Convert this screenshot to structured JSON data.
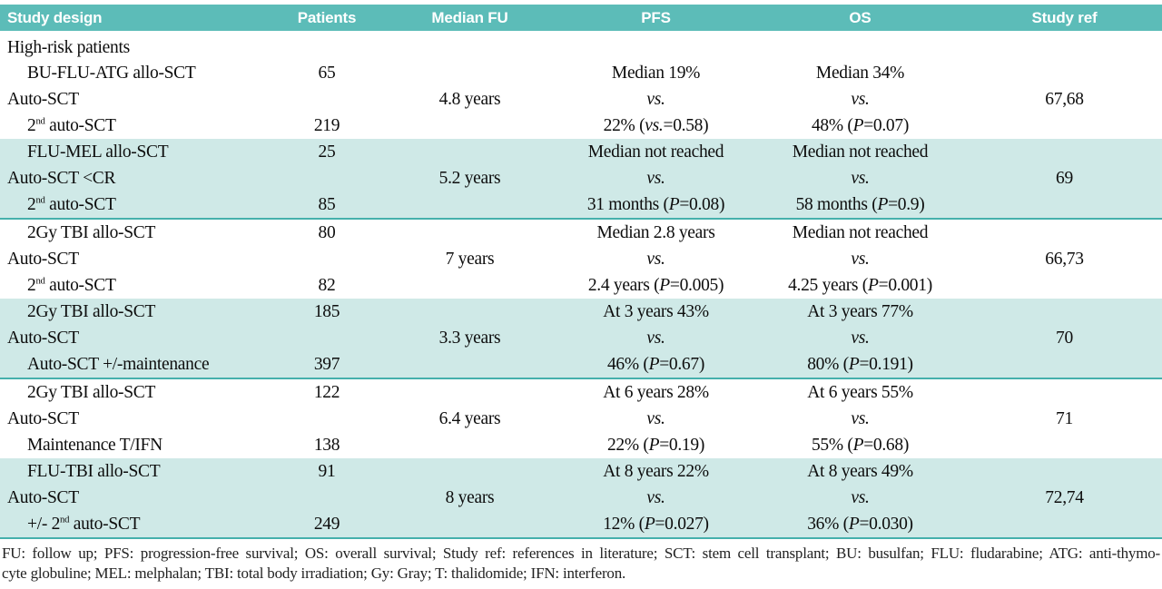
{
  "colors": {
    "header_bg": "#5cbcb8",
    "row_shaded_bg": "#cfe9e7",
    "divider": "#45b0ac",
    "header_text": "#ffffff",
    "body_text": "#0d0d0d"
  },
  "table": {
    "headers": [
      "Study design",
      "Patients",
      "Median FU",
      "PFS",
      "OS",
      "Study ref"
    ],
    "section_label": "High-risk patients",
    "blocks": [
      {
        "shaded": false,
        "rows": [
          {
            "indent": true,
            "study": "BU-FLU-ATG allo-SCT",
            "patients": "65",
            "pfs": "Median 19%",
            "os": "Median 34%"
          },
          {
            "indent": false,
            "study": "Auto-SCT",
            "median_fu": "4.8 years",
            "pfs": "vs.",
            "os": "vs.",
            "ref": "67,68"
          },
          {
            "indent": true,
            "study": "2nd auto-SCT",
            "patients": "219",
            "pfs": "22% (vs.=0.58)",
            "os": "48% (P=0.07)"
          }
        ]
      },
      {
        "shaded": true,
        "rows": [
          {
            "indent": true,
            "study": "FLU-MEL allo-SCT",
            "patients": "25",
            "pfs": "Median not reached",
            "os": "Median not reached"
          },
          {
            "indent": false,
            "study": "Auto-SCT <CR",
            "median_fu": "5.2 years",
            "pfs": "vs.",
            "os": "vs.",
            "ref": "69"
          },
          {
            "indent": true,
            "study": "2nd auto-SCT",
            "patients": "85",
            "pfs": "31 months (P=0.08)",
            "os": "58 months (P=0.9)"
          }
        ]
      },
      {
        "shaded": false,
        "rows": [
          {
            "indent": true,
            "study": "2Gy TBI allo-SCT",
            "patients": "80",
            "pfs": "Median 2.8 years",
            "os": "Median not reached"
          },
          {
            "indent": false,
            "study": "Auto-SCT",
            "median_fu": "7 years",
            "pfs": "vs.",
            "os": "vs.",
            "ref": "66,73"
          },
          {
            "indent": true,
            "study": "2nd auto-SCT",
            "patients": "82",
            "pfs": "2.4 years (P=0.005)",
            "os": "4.25 years (P=0.001)"
          }
        ]
      },
      {
        "shaded": true,
        "rows": [
          {
            "indent": true,
            "study": "2Gy TBI allo-SCT",
            "patients": "185",
            "pfs": "At 3 years 43%",
            "os": "At 3 years 77%"
          },
          {
            "indent": false,
            "study": "Auto-SCT",
            "median_fu": "3.3 years",
            "pfs": "vs.",
            "os": "vs.",
            "ref": "70"
          },
          {
            "indent": true,
            "study": "Auto-SCT +/-maintenance",
            "patients": "397",
            "pfs": "46% (P=0.67)",
            "os": "80% (P=0.191)"
          }
        ]
      },
      {
        "shaded": false,
        "rows": [
          {
            "indent": true,
            "study": "2Gy TBI allo-SCT",
            "patients": "122",
            "pfs": "At 6 years 28%",
            "os": "At 6 years 55%"
          },
          {
            "indent": false,
            "study": "Auto-SCT",
            "median_fu": "6.4 years",
            "pfs": "vs.",
            "os": "vs.",
            "ref": "71"
          },
          {
            "indent": true,
            "study": "Maintenance T/IFN",
            "patients": "138",
            "pfs": "22% (P=0.19)",
            "os": "55% (P=0.68)"
          }
        ]
      },
      {
        "shaded": true,
        "rows": [
          {
            "indent": true,
            "study": "FLU-TBI allo-SCT",
            "patients": "91",
            "pfs": "At 8 years 22%",
            "os": "At 8 years 49%"
          },
          {
            "indent": false,
            "study": "Auto-SCT",
            "median_fu": "8 years",
            "pfs": "vs.",
            "os": "vs.",
            "ref": "72,74"
          },
          {
            "indent": true,
            "study": "+/- 2nd auto-SCT",
            "patients": "249",
            "pfs": "12% (P=0.027)",
            "os": "36% (P=0.030)"
          }
        ]
      }
    ],
    "footnote_lines": [
      "FU: follow up; PFS: progression-free survival; OS: overall survival; Study ref: references in literature; SCT: stem cell transplant; BU: busulfan; FLU: fludarabine; ATG: anti-thymo-",
      "cyte globuline; MEL: melphalan; TBI: total body irradiation; Gy: Gray; T: thalidomide; IFN: interferon."
    ]
  }
}
